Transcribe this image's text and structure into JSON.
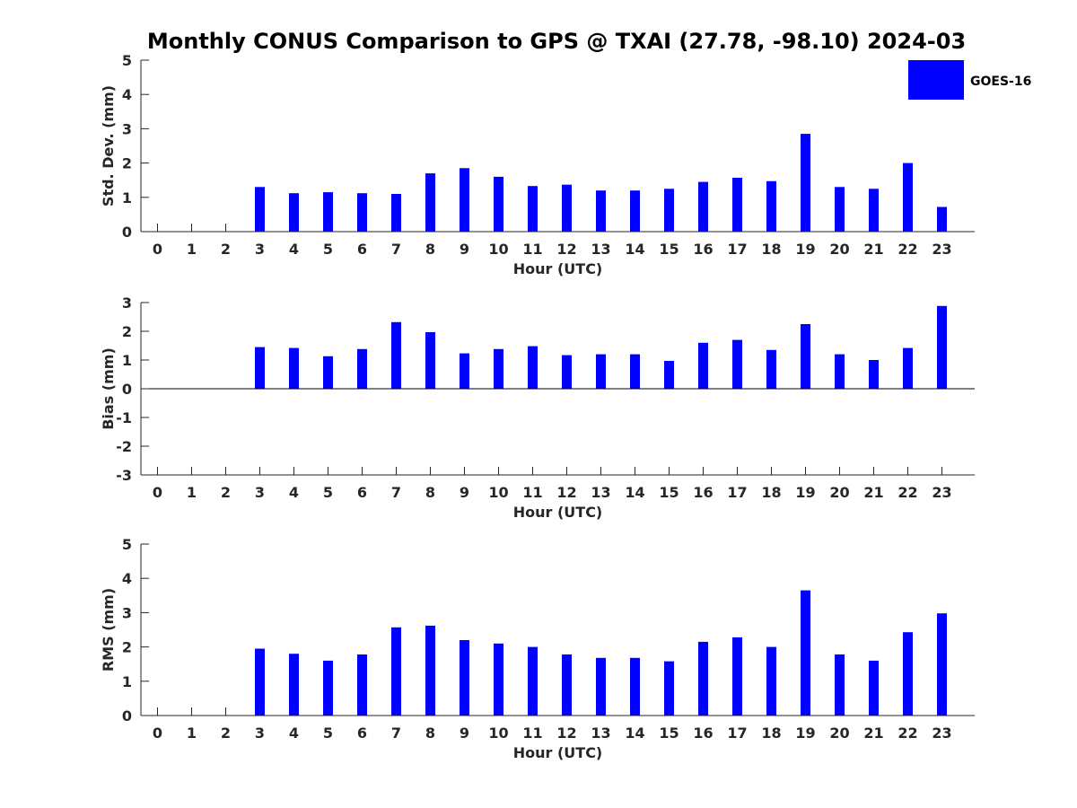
{
  "chart_data": {
    "title": "Monthly CONUS Comparison to GPS @ TXAI (27.78, -98.10) 2024-03",
    "type": "bar",
    "legend": {
      "position": "top-right",
      "entries": [
        "GOES-16"
      ]
    },
    "colors": {
      "bar": "#0000ff",
      "axis": "#262626"
    },
    "categories": [
      "0",
      "1",
      "2",
      "3",
      "4",
      "5",
      "6",
      "7",
      "8",
      "9",
      "10",
      "11",
      "12",
      "13",
      "14",
      "15",
      "16",
      "17",
      "18",
      "19",
      "20",
      "21",
      "22",
      "23"
    ],
    "panels": [
      {
        "id": "std",
        "ylabel": "Std. Dev. (mm)",
        "xlabel": "Hour (UTC)",
        "ylim": [
          0,
          5
        ],
        "yticks": [
          0,
          1,
          2,
          3,
          4,
          5
        ],
        "series": [
          {
            "name": "GOES-16",
            "values": [
              null,
              null,
              null,
              1.3,
              1.12,
              1.15,
              1.12,
              1.1,
              1.7,
              1.85,
              1.6,
              1.33,
              1.37,
              1.2,
              1.2,
              1.25,
              1.45,
              1.57,
              1.47,
              2.85,
              1.3,
              1.25,
              2.0,
              0.72
            ]
          }
        ]
      },
      {
        "id": "bias",
        "ylabel": "Bias (mm)",
        "xlabel": "Hour (UTC)",
        "ylim": [
          -3,
          3
        ],
        "yticks": [
          -3,
          -2,
          -1,
          0,
          1,
          2,
          3
        ],
        "series": [
          {
            "name": "GOES-16",
            "values": [
              null,
              null,
              null,
              1.45,
              1.42,
              1.13,
              1.38,
              2.32,
              1.97,
              1.23,
              1.38,
              1.48,
              1.17,
              1.2,
              1.2,
              0.97,
              1.6,
              1.7,
              1.35,
              2.25,
              1.2,
              1.0,
              1.42,
              2.88
            ]
          }
        ]
      },
      {
        "id": "rms",
        "ylabel": "RMS (mm)",
        "xlabel": "Hour (UTC)",
        "ylim": [
          0,
          5
        ],
        "yticks": [
          0,
          1,
          2,
          3,
          4,
          5
        ],
        "series": [
          {
            "name": "GOES-16",
            "values": [
              null,
              null,
              null,
              1.95,
              1.8,
              1.6,
              1.78,
              2.57,
              2.62,
              2.2,
              2.1,
              2.0,
              1.78,
              1.68,
              1.68,
              1.58,
              2.15,
              2.28,
              2.0,
              3.65,
              1.78,
              1.6,
              2.43,
              2.98
            ]
          }
        ]
      }
    ]
  }
}
